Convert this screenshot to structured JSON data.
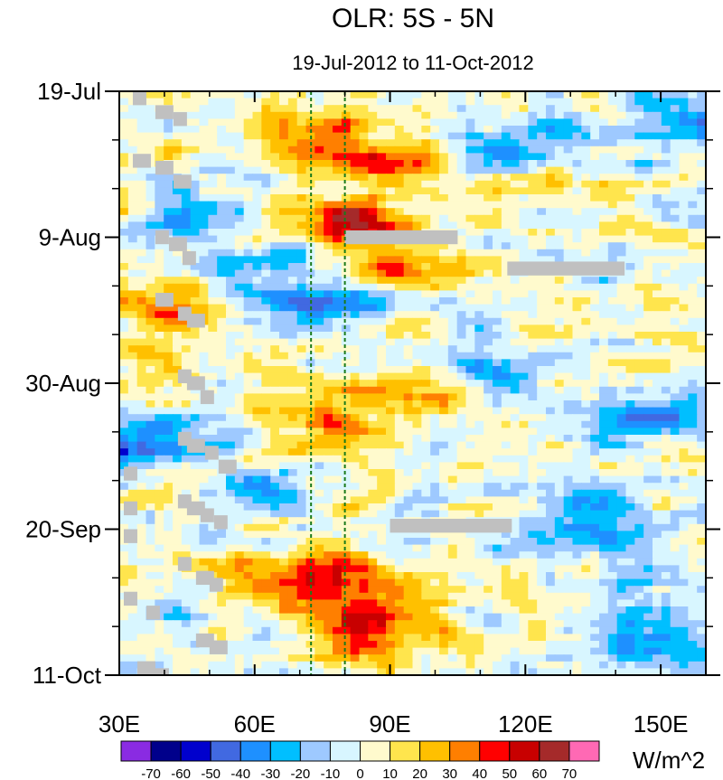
{
  "chart_data": {
    "type": "heatmap",
    "title": "OLR: 5S - 5N",
    "subtitle": "19-Jul-2012 to 11-Oct-2012",
    "x_axis": {
      "label": "",
      "range": [
        30,
        160
      ],
      "ticks": [
        {
          "value": 30,
          "label": "30E"
        },
        {
          "value": 60,
          "label": "60E"
        },
        {
          "value": 90,
          "label": "90E"
        },
        {
          "value": 120,
          "label": "120E"
        },
        {
          "value": 150,
          "label": "150E"
        }
      ],
      "minor_step": 10
    },
    "y_axis": {
      "label": "",
      "range_days": [
        0,
        84
      ],
      "ticks": [
        {
          "day": 0,
          "label": "19-Jul"
        },
        {
          "day": 21,
          "label": "9-Aug"
        },
        {
          "day": 42,
          "label": "30-Aug"
        },
        {
          "day": 63,
          "label": "20-Sep"
        },
        {
          "day": 84,
          "label": "11-Oct"
        }
      ],
      "minor_step_days": 7
    },
    "reference_lines_lon": [
      72.5,
      80
    ],
    "colorbar": {
      "unit": "W/m^2",
      "levels": [
        -70,
        -60,
        -50,
        -40,
        -30,
        -20,
        -10,
        0,
        10,
        20,
        30,
        40,
        50,
        60,
        70
      ],
      "colors": [
        "#8a2be2",
        "#00008b",
        "#0000cd",
        "#4169e1",
        "#1e90ff",
        "#00bfff",
        "#9ec9ff",
        "#d8f6ff",
        "#fffacd",
        "#ffe54d",
        "#ffc000",
        "#ff7f00",
        "#ff0000",
        "#c80000",
        "#a52a2a",
        "#ff69b4"
      ]
    },
    "anomaly_field": {
      "description": "OLR anomaly (W/m^2) vs longitude and day",
      "features": [
        {
          "lon": 40,
          "day": 30,
          "sx": 7,
          "sy": 3,
          "amp": 30
        },
        {
          "lon": 45,
          "day": 55,
          "sx": 8,
          "sy": 3,
          "amp": 28
        },
        {
          "lon": 72,
          "day": 5,
          "sx": 8,
          "sy": 1.6,
          "amp": 32
        },
        {
          "lon": 85,
          "day": 10,
          "sx": 12,
          "sy": 3,
          "amp": 38
        },
        {
          "lon": 84,
          "day": 18,
          "sx": 6,
          "sy": 2,
          "amp": 45
        },
        {
          "lon": 78,
          "day": 20,
          "sx": 12,
          "sy": 2,
          "amp": 35
        },
        {
          "lon": 92,
          "day": 26,
          "sx": 14,
          "sy": 2.5,
          "amp": 28
        },
        {
          "lon": 90,
          "day": 44,
          "sx": 14,
          "sy": 2,
          "amp": 38
        },
        {
          "lon": 75,
          "day": 48,
          "sx": 8,
          "sy": 1.8,
          "amp": 35
        },
        {
          "lon": 70,
          "day": 69,
          "sx": 14,
          "sy": 2.5,
          "amp": 30
        },
        {
          "lon": 85,
          "day": 76,
          "sx": 12,
          "sy": 5,
          "amp": 45
        },
        {
          "lon": 130,
          "day": 13,
          "sx": 8,
          "sy": 2.5,
          "amp": 25
        },
        {
          "lon": 60,
          "day": 25,
          "sx": 10,
          "sy": 3,
          "amp": -28
        },
        {
          "lon": 45,
          "day": 18,
          "sx": 6,
          "sy": 2.5,
          "amp": -32
        },
        {
          "lon": 75,
          "day": 30,
          "sx": 10,
          "sy": 2,
          "amp": -35
        },
        {
          "lon": 40,
          "day": 51,
          "sx": 10,
          "sy": 2.5,
          "amp": -38
        },
        {
          "lon": 60,
          "day": 57,
          "sx": 8,
          "sy": 2.5,
          "amp": -30
        },
        {
          "lon": 148,
          "day": 47,
          "sx": 10,
          "sy": 2.5,
          "amp": -42
        },
        {
          "lon": 115,
          "day": 40,
          "sx": 8,
          "sy": 3,
          "amp": -28
        },
        {
          "lon": 150,
          "day": 78,
          "sx": 10,
          "sy": 4,
          "amp": -32
        },
        {
          "lon": 130,
          "day": 63,
          "sx": 12,
          "sy": 3,
          "amp": -25
        },
        {
          "lon": 120,
          "day": 8,
          "sx": 10,
          "sy": 3,
          "amp": -28
        },
        {
          "lon": 150,
          "day": 4,
          "sx": 8,
          "sy": 2.5,
          "amp": -26
        }
      ]
    },
    "missing_data_segments": [
      {
        "lon0": 80,
        "lon1": 105,
        "day0": 20,
        "day1": 22
      },
      {
        "lon0": 116,
        "lon1": 142,
        "day0": 24.5,
        "day1": 26.5
      },
      {
        "lon0": 90,
        "lon1": 117,
        "day0": 61.5,
        "day1": 63.5
      },
      {
        "lon0": 33,
        "lon1": 36,
        "day0": 0,
        "day1": 2
      },
      {
        "lon0": 38,
        "lon1": 42,
        "day0": 2,
        "day1": 4
      },
      {
        "lon0": 42,
        "lon1": 45,
        "day0": 3,
        "day1": 5
      },
      {
        "lon0": 33,
        "lon1": 37,
        "day0": 9,
        "day1": 11
      },
      {
        "lon0": 38,
        "lon1": 42,
        "day0": 10,
        "day1": 12
      },
      {
        "lon0": 42,
        "lon1": 46,
        "day0": 12,
        "day1": 14
      },
      {
        "lon0": 38,
        "lon1": 41,
        "day0": 20,
        "day1": 22
      },
      {
        "lon0": 41,
        "lon1": 45,
        "day0": 21,
        "day1": 23
      },
      {
        "lon0": 44,
        "lon1": 47,
        "day0": 23,
        "day1": 25
      },
      {
        "lon0": 38,
        "lon1": 42,
        "day0": 29,
        "day1": 31
      },
      {
        "lon0": 43,
        "lon1": 46,
        "day0": 31,
        "day1": 33
      },
      {
        "lon0": 45,
        "lon1": 49,
        "day0": 32,
        "day1": 34
      },
      {
        "lon0": 43,
        "lon1": 46,
        "day0": 40,
        "day1": 42
      },
      {
        "lon0": 45,
        "lon1": 49,
        "day0": 41,
        "day1": 43
      },
      {
        "lon0": 48,
        "lon1": 51,
        "day0": 43,
        "day1": 45
      },
      {
        "lon0": 43,
        "lon1": 46,
        "day0": 49,
        "day1": 51
      },
      {
        "lon0": 45,
        "lon1": 49,
        "day0": 50,
        "day1": 52
      },
      {
        "lon0": 49,
        "lon1": 52,
        "day0": 51,
        "day1": 53
      },
      {
        "lon0": 52,
        "lon1": 56,
        "day0": 53,
        "day1": 55
      },
      {
        "lon0": 31,
        "lon1": 34,
        "day0": 54,
        "day1": 56
      },
      {
        "lon0": 43,
        "lon1": 46,
        "day0": 58,
        "day1": 60
      },
      {
        "lon0": 45,
        "lon1": 49,
        "day0": 59,
        "day1": 61
      },
      {
        "lon0": 48,
        "lon1": 51,
        "day0": 60,
        "day1": 62
      },
      {
        "lon0": 51,
        "lon1": 54,
        "day0": 61,
        "day1": 63
      },
      {
        "lon0": 31,
        "lon1": 34,
        "day0": 59,
        "day1": 61
      },
      {
        "lon0": 31,
        "lon1": 34,
        "day0": 63,
        "day1": 65
      },
      {
        "lon0": 43,
        "lon1": 46,
        "day0": 67,
        "day1": 69
      },
      {
        "lon0": 47,
        "lon1": 51,
        "day0": 69,
        "day1": 71
      },
      {
        "lon0": 50,
        "lon1": 53,
        "day0": 70,
        "day1": 72
      },
      {
        "lon0": 31,
        "lon1": 34,
        "day0": 72,
        "day1": 74
      },
      {
        "lon0": 36,
        "lon1": 39,
        "day0": 74,
        "day1": 76
      },
      {
        "lon0": 47,
        "lon1": 51,
        "day0": 78,
        "day1": 80
      },
      {
        "lon0": 50,
        "lon1": 54,
        "day0": 79,
        "day1": 81
      },
      {
        "lon0": 34,
        "lon1": 38,
        "day0": 82,
        "day1": 84
      },
      {
        "lon0": 37,
        "lon1": 41,
        "day0": 83,
        "day1": 84
      }
    ]
  }
}
